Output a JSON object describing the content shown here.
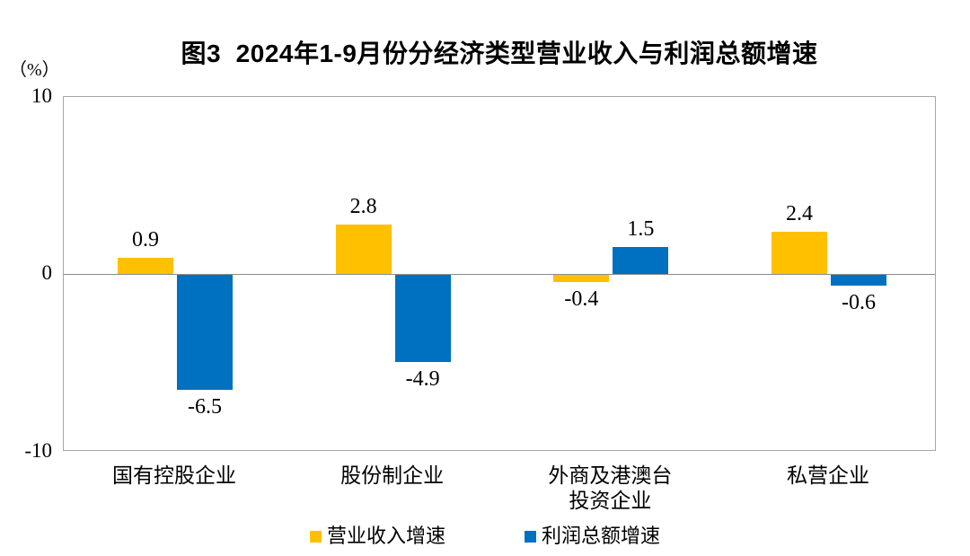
{
  "title": "图3  2024年1-9月份分经济类型营业收入与利润总额增速",
  "y_axis": {
    "unit": "（%）",
    "ticks": [
      "10",
      "0",
      "-10"
    ]
  },
  "legend": [
    {
      "label": "营业收入增速",
      "color": "#FFC000"
    },
    {
      "label": "利润总额增速",
      "color": "#0070C0"
    }
  ],
  "colors": {
    "revenue": "#FFC000",
    "profit": "#0070C0",
    "axis_frame": "#a6a6a6",
    "zero_line": "#8c8c8c",
    "text": "#000000"
  },
  "chart_data": {
    "type": "bar",
    "title": "图3 2024年1-9月份分经济类型营业收入与利润总额增速",
    "categories": [
      "国有控股企业",
      "股份制企业",
      "外商及港澳台投资企业",
      "私营企业"
    ],
    "categories_display": [
      [
        "国有控股企业"
      ],
      [
        "股份制企业"
      ],
      [
        "外商及港澳台",
        "投资企业"
      ],
      [
        "私营企业"
      ]
    ],
    "series": [
      {
        "name": "营业收入增速",
        "color": "#FFC000",
        "values": [
          0.9,
          2.8,
          -0.4,
          2.4
        ]
      },
      {
        "name": "利润总额增速",
        "color": "#0070C0",
        "values": [
          -6.5,
          -4.9,
          1.5,
          -0.6
        ]
      }
    ],
    "ylabel": "（%）",
    "ylim": [
      -10,
      10
    ],
    "y_ticks": [
      10,
      0,
      -10
    ],
    "grid": false,
    "data_labels": true,
    "data_label_decimals": 1,
    "legend_position": "bottom"
  }
}
